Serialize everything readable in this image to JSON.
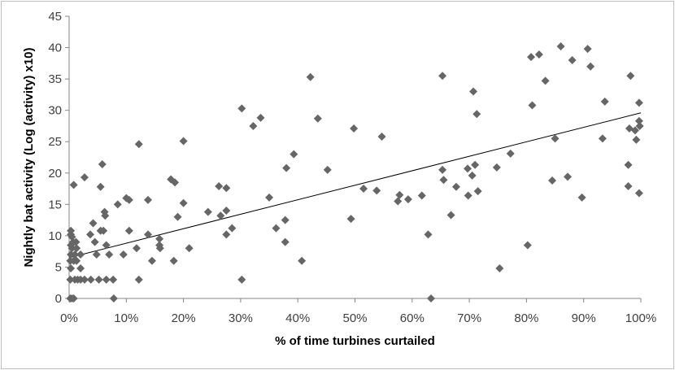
{
  "chart_data": {
    "type": "scatter",
    "title": "",
    "xlabel": "% of time turbines curtailed",
    "ylabel": "Nightly bat activity (Log (activity) x10)",
    "xlim": [
      0,
      1
    ],
    "ylim": [
      0,
      45
    ],
    "x_ticks": [
      0,
      0.1,
      0.2,
      0.3,
      0.4,
      0.5,
      0.6,
      0.7,
      0.8,
      0.9,
      1.0
    ],
    "x_tick_labels": [
      "0%",
      "10%",
      "20%",
      "30%",
      "40%",
      "50%",
      "60%",
      "70%",
      "80%",
      "90%",
      "100%"
    ],
    "y_ticks": [
      0,
      5,
      10,
      15,
      20,
      25,
      30,
      35,
      40,
      45
    ],
    "y_tick_labels": [
      "0",
      "5",
      "10",
      "15",
      "20",
      "25",
      "30",
      "35",
      "40",
      "45"
    ],
    "grid": false,
    "legend": "none",
    "marker_color": "#666666",
    "trendline": {
      "type": "linear",
      "x": [
        0,
        1.0
      ],
      "y": [
        6.5,
        29.6
      ]
    },
    "points": [
      [
        0.002,
        0
      ],
      [
        0.005,
        0
      ],
      [
        0.008,
        0
      ],
      [
        0.078,
        0
      ],
      [
        0.633,
        0
      ],
      [
        0.002,
        3
      ],
      [
        0.01,
        3
      ],
      [
        0.015,
        3
      ],
      [
        0.02,
        3
      ],
      [
        0.027,
        3
      ],
      [
        0.038,
        3
      ],
      [
        0.052,
        3
      ],
      [
        0.065,
        3
      ],
      [
        0.077,
        3
      ],
      [
        0.122,
        3
      ],
      [
        0.302,
        3
      ],
      [
        0.003,
        4.8
      ],
      [
        0.02,
        4.8
      ],
      [
        0.753,
        4.8
      ],
      [
        0.002,
        6
      ],
      [
        0.008,
        6
      ],
      [
        0.013,
        6
      ],
      [
        0.145,
        6
      ],
      [
        0.183,
        6
      ],
      [
        0.407,
        6
      ],
      [
        0.003,
        7
      ],
      [
        0.01,
        7
      ],
      [
        0.02,
        7
      ],
      [
        0.048,
        7
      ],
      [
        0.07,
        7
      ],
      [
        0.095,
        7
      ],
      [
        0.005,
        8
      ],
      [
        0.013,
        8
      ],
      [
        0.118,
        8
      ],
      [
        0.159,
        8
      ],
      [
        0.21,
        8
      ],
      [
        0.003,
        8.5
      ],
      [
        0.065,
        8.5
      ],
      [
        0.158,
        8.5
      ],
      [
        0.802,
        8.5
      ],
      [
        0.007,
        9
      ],
      [
        0.012,
        9
      ],
      [
        0.045,
        9
      ],
      [
        0.378,
        9
      ],
      [
        0.158,
        9.5
      ],
      [
        0.005,
        9.8
      ],
      [
        0.003,
        10.2
      ],
      [
        0.037,
        10.2
      ],
      [
        0.138,
        10.2
      ],
      [
        0.275,
        10.2
      ],
      [
        0.628,
        10.2
      ],
      [
        0.055,
        10.8
      ],
      [
        0.06,
        10.8
      ],
      [
        0.003,
        10.8
      ],
      [
        0.105,
        10.8
      ],
      [
        0.285,
        11.2
      ],
      [
        0.362,
        11.2
      ],
      [
        0.042,
        12
      ],
      [
        0.378,
        12.5
      ],
      [
        0.493,
        12.7
      ],
      [
        0.19,
        13
      ],
      [
        0.063,
        13.2
      ],
      [
        0.265,
        13.2
      ],
      [
        0.668,
        13.3
      ],
      [
        0.062,
        13.8
      ],
      [
        0.243,
        13.8
      ],
      [
        0.275,
        14
      ],
      [
        0.085,
        15
      ],
      [
        0.138,
        15.7
      ],
      [
        0.2,
        15.2
      ],
      [
        0.1,
        16
      ],
      [
        0.105,
        15.7
      ],
      [
        0.35,
        16.1
      ],
      [
        0.575,
        15.5
      ],
      [
        0.578,
        16.5
      ],
      [
        0.593,
        15.8
      ],
      [
        0.617,
        16.4
      ],
      [
        0.698,
        16.4
      ],
      [
        0.897,
        16.1
      ],
      [
        0.997,
        16.8
      ],
      [
        0.275,
        17.6
      ],
      [
        0.515,
        17.5
      ],
      [
        0.538,
        17.2
      ],
      [
        0.677,
        17.8
      ],
      [
        0.715,
        17.1
      ],
      [
        0.262,
        17.9
      ],
      [
        0.978,
        17.9
      ],
      [
        0.055,
        17.8
      ],
      [
        0.008,
        18.1
      ],
      [
        0.178,
        19
      ],
      [
        0.185,
        18.5
      ],
      [
        0.655,
        18.9
      ],
      [
        0.845,
        18.8
      ],
      [
        0.872,
        19.4
      ],
      [
        0.027,
        19.3
      ],
      [
        0.705,
        19.6
      ],
      [
        0.653,
        20.5
      ],
      [
        0.697,
        20.7
      ],
      [
        0.38,
        20.8
      ],
      [
        0.452,
        20.5
      ],
      [
        0.748,
        20.9
      ],
      [
        0.71,
        21.3
      ],
      [
        0.978,
        21.3
      ],
      [
        0.058,
        21.4
      ],
      [
        0.393,
        23
      ],
      [
        0.772,
        23.1
      ],
      [
        0.122,
        24.6
      ],
      [
        0.2,
        25.1
      ],
      [
        0.85,
        25.5
      ],
      [
        0.933,
        25.5
      ],
      [
        0.992,
        25.3
      ],
      [
        0.547,
        25.8
      ],
      [
        0.99,
        26.8
      ],
      [
        0.98,
        27.1
      ],
      [
        0.998,
        27.5
      ],
      [
        0.498,
        27.1
      ],
      [
        0.322,
        27.5
      ],
      [
        0.997,
        28.3
      ],
      [
        0.335,
        28.8
      ],
      [
        0.435,
        28.7
      ],
      [
        0.713,
        29.4
      ],
      [
        0.302,
        30.3
      ],
      [
        0.81,
        30.8
      ],
      [
        0.937,
        31.4
      ],
      [
        0.997,
        31.2
      ],
      [
        0.707,
        33
      ],
      [
        0.422,
        35.3
      ],
      [
        0.653,
        35.5
      ],
      [
        0.982,
        35.5
      ],
      [
        0.833,
        34.7
      ],
      [
        0.912,
        37
      ],
      [
        0.88,
        38
      ],
      [
        0.808,
        38.5
      ],
      [
        0.822,
        38.9
      ],
      [
        0.907,
        39.8
      ],
      [
        0.86,
        40.2
      ]
    ]
  }
}
